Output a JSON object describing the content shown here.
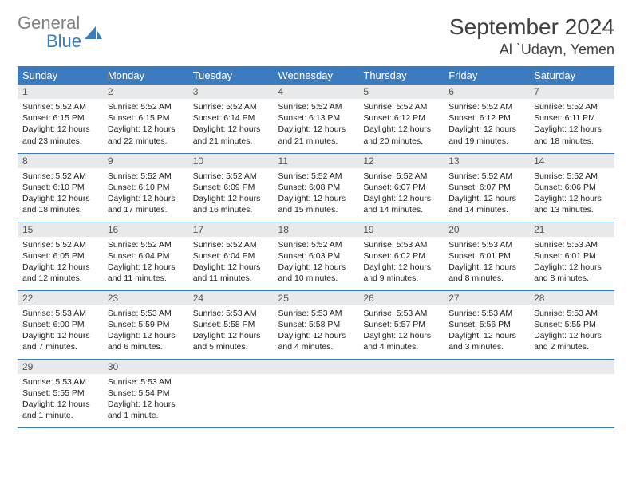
{
  "logo": {
    "general": "General",
    "blue": "Blue"
  },
  "header": {
    "month_title": "September 2024",
    "location": "Al `Udayn, Yemen"
  },
  "colors": {
    "accent": "#3b7bbf",
    "header_text": "#ffffff",
    "daynum_bg": "#e8e9ea",
    "text": "#222222",
    "title_text": "#404040",
    "logo_gray": "#808080"
  },
  "weekdays": [
    "Sunday",
    "Monday",
    "Tuesday",
    "Wednesday",
    "Thursday",
    "Friday",
    "Saturday"
  ],
  "days": [
    {
      "n": "1",
      "sr": "Sunrise: 5:52 AM",
      "ss": "Sunset: 6:15 PM",
      "d1": "Daylight: 12 hours",
      "d2": "and 23 minutes."
    },
    {
      "n": "2",
      "sr": "Sunrise: 5:52 AM",
      "ss": "Sunset: 6:15 PM",
      "d1": "Daylight: 12 hours",
      "d2": "and 22 minutes."
    },
    {
      "n": "3",
      "sr": "Sunrise: 5:52 AM",
      "ss": "Sunset: 6:14 PM",
      "d1": "Daylight: 12 hours",
      "d2": "and 21 minutes."
    },
    {
      "n": "4",
      "sr": "Sunrise: 5:52 AM",
      "ss": "Sunset: 6:13 PM",
      "d1": "Daylight: 12 hours",
      "d2": "and 21 minutes."
    },
    {
      "n": "5",
      "sr": "Sunrise: 5:52 AM",
      "ss": "Sunset: 6:12 PM",
      "d1": "Daylight: 12 hours",
      "d2": "and 20 minutes."
    },
    {
      "n": "6",
      "sr": "Sunrise: 5:52 AM",
      "ss": "Sunset: 6:12 PM",
      "d1": "Daylight: 12 hours",
      "d2": "and 19 minutes."
    },
    {
      "n": "7",
      "sr": "Sunrise: 5:52 AM",
      "ss": "Sunset: 6:11 PM",
      "d1": "Daylight: 12 hours",
      "d2": "and 18 minutes."
    },
    {
      "n": "8",
      "sr": "Sunrise: 5:52 AM",
      "ss": "Sunset: 6:10 PM",
      "d1": "Daylight: 12 hours",
      "d2": "and 18 minutes."
    },
    {
      "n": "9",
      "sr": "Sunrise: 5:52 AM",
      "ss": "Sunset: 6:10 PM",
      "d1": "Daylight: 12 hours",
      "d2": "and 17 minutes."
    },
    {
      "n": "10",
      "sr": "Sunrise: 5:52 AM",
      "ss": "Sunset: 6:09 PM",
      "d1": "Daylight: 12 hours",
      "d2": "and 16 minutes."
    },
    {
      "n": "11",
      "sr": "Sunrise: 5:52 AM",
      "ss": "Sunset: 6:08 PM",
      "d1": "Daylight: 12 hours",
      "d2": "and 15 minutes."
    },
    {
      "n": "12",
      "sr": "Sunrise: 5:52 AM",
      "ss": "Sunset: 6:07 PM",
      "d1": "Daylight: 12 hours",
      "d2": "and 14 minutes."
    },
    {
      "n": "13",
      "sr": "Sunrise: 5:52 AM",
      "ss": "Sunset: 6:07 PM",
      "d1": "Daylight: 12 hours",
      "d2": "and 14 minutes."
    },
    {
      "n": "14",
      "sr": "Sunrise: 5:52 AM",
      "ss": "Sunset: 6:06 PM",
      "d1": "Daylight: 12 hours",
      "d2": "and 13 minutes."
    },
    {
      "n": "15",
      "sr": "Sunrise: 5:52 AM",
      "ss": "Sunset: 6:05 PM",
      "d1": "Daylight: 12 hours",
      "d2": "and 12 minutes."
    },
    {
      "n": "16",
      "sr": "Sunrise: 5:52 AM",
      "ss": "Sunset: 6:04 PM",
      "d1": "Daylight: 12 hours",
      "d2": "and 11 minutes."
    },
    {
      "n": "17",
      "sr": "Sunrise: 5:52 AM",
      "ss": "Sunset: 6:04 PM",
      "d1": "Daylight: 12 hours",
      "d2": "and 11 minutes."
    },
    {
      "n": "18",
      "sr": "Sunrise: 5:52 AM",
      "ss": "Sunset: 6:03 PM",
      "d1": "Daylight: 12 hours",
      "d2": "and 10 minutes."
    },
    {
      "n": "19",
      "sr": "Sunrise: 5:53 AM",
      "ss": "Sunset: 6:02 PM",
      "d1": "Daylight: 12 hours",
      "d2": "and 9 minutes."
    },
    {
      "n": "20",
      "sr": "Sunrise: 5:53 AM",
      "ss": "Sunset: 6:01 PM",
      "d1": "Daylight: 12 hours",
      "d2": "and 8 minutes."
    },
    {
      "n": "21",
      "sr": "Sunrise: 5:53 AM",
      "ss": "Sunset: 6:01 PM",
      "d1": "Daylight: 12 hours",
      "d2": "and 8 minutes."
    },
    {
      "n": "22",
      "sr": "Sunrise: 5:53 AM",
      "ss": "Sunset: 6:00 PM",
      "d1": "Daylight: 12 hours",
      "d2": "and 7 minutes."
    },
    {
      "n": "23",
      "sr": "Sunrise: 5:53 AM",
      "ss": "Sunset: 5:59 PM",
      "d1": "Daylight: 12 hours",
      "d2": "and 6 minutes."
    },
    {
      "n": "24",
      "sr": "Sunrise: 5:53 AM",
      "ss": "Sunset: 5:58 PM",
      "d1": "Daylight: 12 hours",
      "d2": "and 5 minutes."
    },
    {
      "n": "25",
      "sr": "Sunrise: 5:53 AM",
      "ss": "Sunset: 5:58 PM",
      "d1": "Daylight: 12 hours",
      "d2": "and 4 minutes."
    },
    {
      "n": "26",
      "sr": "Sunrise: 5:53 AM",
      "ss": "Sunset: 5:57 PM",
      "d1": "Daylight: 12 hours",
      "d2": "and 4 minutes."
    },
    {
      "n": "27",
      "sr": "Sunrise: 5:53 AM",
      "ss": "Sunset: 5:56 PM",
      "d1": "Daylight: 12 hours",
      "d2": "and 3 minutes."
    },
    {
      "n": "28",
      "sr": "Sunrise: 5:53 AM",
      "ss": "Sunset: 5:55 PM",
      "d1": "Daylight: 12 hours",
      "d2": "and 2 minutes."
    },
    {
      "n": "29",
      "sr": "Sunrise: 5:53 AM",
      "ss": "Sunset: 5:55 PM",
      "d1": "Daylight: 12 hours",
      "d2": "and 1 minute."
    },
    {
      "n": "30",
      "sr": "Sunrise: 5:53 AM",
      "ss": "Sunset: 5:54 PM",
      "d1": "Daylight: 12 hours",
      "d2": "and 1 minute."
    }
  ]
}
